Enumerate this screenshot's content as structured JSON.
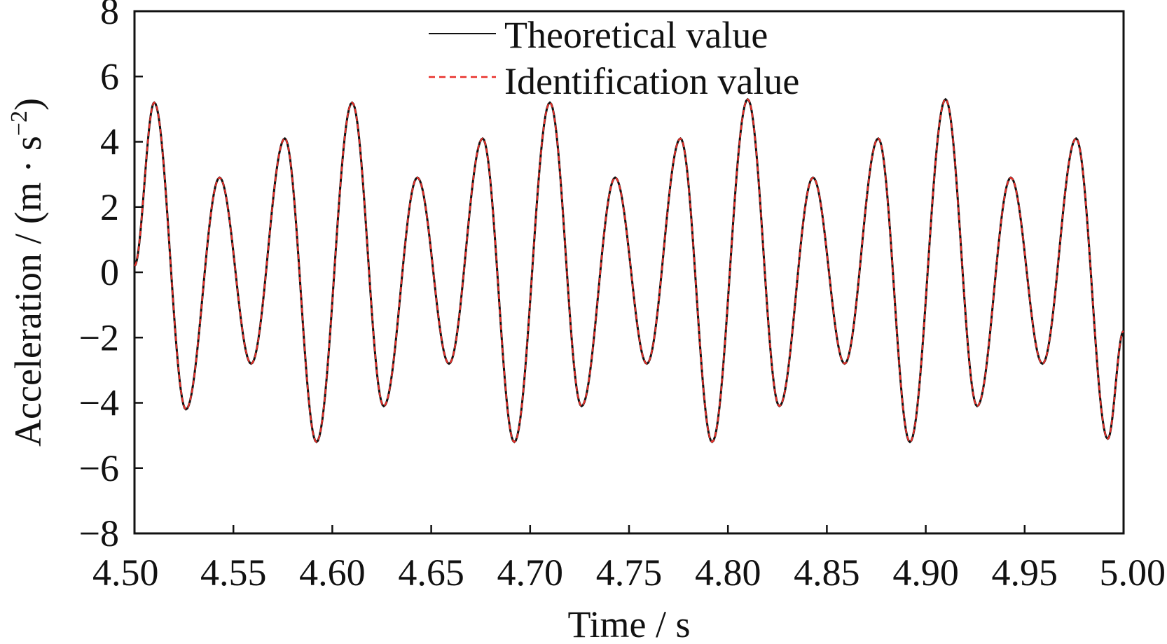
{
  "chart_data": {
    "type": "line",
    "xlabel": "Time / s",
    "ylabel": {
      "main": "Acceleration / (m · s",
      "superscript": "−2",
      "close": ")"
    },
    "xlim": [
      4.5,
      5.0
    ],
    "ylim": [
      -8,
      8
    ],
    "x_ticks": [
      4.5,
      4.55,
      4.6,
      4.65,
      4.7,
      4.75,
      4.8,
      4.85,
      4.9,
      4.95,
      5.0
    ],
    "x_tick_labels": [
      "4.50",
      "4.55",
      "4.60",
      "4.65",
      "4.70",
      "4.75",
      "4.80",
      "4.85",
      "4.90",
      "4.95",
      "5.00"
    ],
    "y_ticks": [
      8,
      6,
      4,
      2,
      0,
      -2,
      -4,
      -6,
      -8
    ],
    "y_tick_labels": [
      "8",
      "6",
      "4",
      "2",
      "0",
      "−2",
      "−4",
      "−6",
      "−8"
    ],
    "grid": false,
    "legend_position": "top-center",
    "series": [
      {
        "name": "Theoretical value",
        "color": "#111111",
        "style": "solid",
        "x": [
          4.5,
          4.51,
          4.526,
          4.543,
          4.559,
          4.576,
          4.592,
          4.61,
          4.626,
          4.643,
          4.659,
          4.676,
          4.692,
          4.71,
          4.726,
          4.743,
          4.759,
          4.776,
          4.792,
          4.81,
          4.826,
          4.843,
          4.859,
          4.876,
          4.892,
          4.91,
          4.926,
          4.943,
          4.959,
          4.976,
          4.992,
          5.0
        ],
        "y": [
          0.2,
          5.2,
          -4.2,
          2.9,
          -2.8,
          4.1,
          -5.2,
          5.2,
          -4.1,
          2.9,
          -2.8,
          4.1,
          -5.2,
          5.2,
          -4.1,
          2.9,
          -2.8,
          4.1,
          -5.2,
          5.3,
          -4.1,
          2.9,
          -2.8,
          4.1,
          -5.2,
          5.3,
          -4.1,
          2.9,
          -2.8,
          4.1,
          -5.1,
          -1.8
        ]
      },
      {
        "name": "Identification value",
        "color": "#e8302a",
        "style": "dashed",
        "x": [
          4.5,
          4.51,
          4.526,
          4.543,
          4.559,
          4.576,
          4.592,
          4.61,
          4.626,
          4.643,
          4.659,
          4.676,
          4.692,
          4.71,
          4.726,
          4.743,
          4.759,
          4.776,
          4.792,
          4.81,
          4.826,
          4.843,
          4.859,
          4.876,
          4.892,
          4.91,
          4.926,
          4.943,
          4.959,
          4.976,
          4.992,
          5.0
        ],
        "y": [
          0.2,
          5.2,
          -4.2,
          2.9,
          -2.8,
          4.1,
          -5.2,
          5.2,
          -4.1,
          2.9,
          -2.8,
          4.1,
          -5.2,
          5.2,
          -4.1,
          2.9,
          -2.8,
          4.1,
          -5.2,
          5.3,
          -4.1,
          2.9,
          -2.8,
          4.1,
          -5.2,
          5.3,
          -4.1,
          2.9,
          -2.8,
          4.1,
          -5.1,
          -1.8
        ]
      }
    ]
  }
}
